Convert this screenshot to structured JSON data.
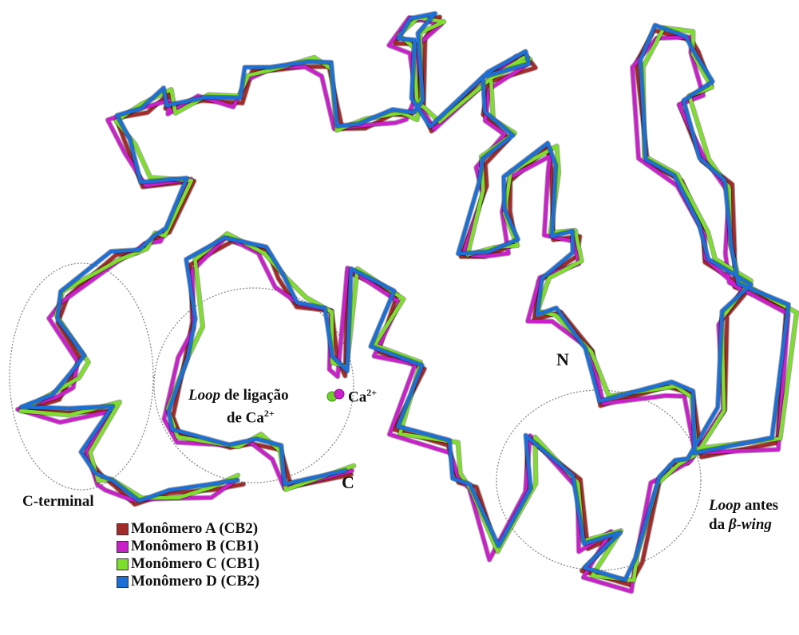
{
  "labels": {
    "loop_ca_italic": "Loop",
    "loop_ca_rest": " de ligação",
    "loop_ca_line2": "de Ca",
    "ca_sup": "2+",
    "ca_ion": "Ca",
    "ca_ion_sup": "2+",
    "c_terminal": "C-terminal",
    "c_end": "C",
    "n_end": "N",
    "loop_beta_italic": "Loop",
    "loop_beta_rest": " antes",
    "loop_beta_line2a": "da ",
    "loop_beta_line2b": "β-wing"
  },
  "legend": [
    {
      "label": "Monômero A (CB2)",
      "color": "#a52a2a"
    },
    {
      "label": "Monômero B (CB1)",
      "color": "#cc1fcc"
    },
    {
      "label": "Monômero C (CB1)",
      "color": "#7ddf2a"
    },
    {
      "label": "Monômero D (CB2)",
      "color": "#1c6fd6"
    }
  ],
  "colors": {
    "chain_a": "#a52a2a",
    "chain_b": "#cc1fcc",
    "chain_c": "#7ddf2a",
    "chain_d": "#1c6fd6",
    "circle": "#888888",
    "ion_green": "#6fcf2a",
    "ion_magenta": "#cc1fcc"
  }
}
